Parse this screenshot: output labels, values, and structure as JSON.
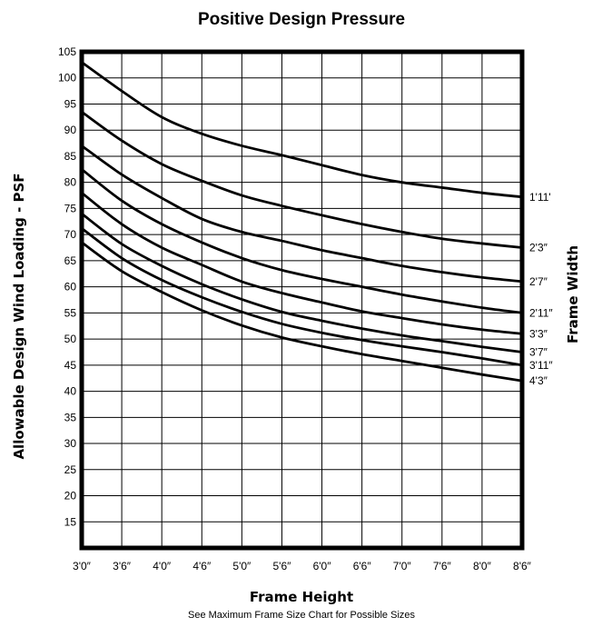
{
  "chart_data": {
    "type": "line",
    "title": "Positive Design Pressure",
    "xlabel": "Frame Height",
    "ylabel": "Allowable Design Wind Loading - PSF",
    "right_label": "Frame Width",
    "note": "See Maximum Frame Size Chart for Possible Sizes",
    "x": [
      36,
      42,
      48,
      54,
      60,
      66,
      72,
      78,
      84,
      90,
      96,
      102
    ],
    "x_tick_labels": [
      "3'0″",
      "3'6″",
      "4'0″",
      "4'6″",
      "5'0″",
      "5'6″",
      "6'0″",
      "6'6″",
      "7'0″",
      "7'6″",
      "8'0″",
      "8'6″"
    ],
    "xlim": [
      36,
      102
    ],
    "ylim": [
      10,
      105
    ],
    "y_ticks": [
      15,
      20,
      25,
      30,
      35,
      40,
      45,
      50,
      55,
      60,
      65,
      70,
      75,
      80,
      85,
      90,
      95,
      100,
      105
    ],
    "grid": true,
    "series": [
      {
        "name": "1'11'",
        "values": [
          103,
          97.5,
          92.5,
          89.3,
          87,
          85.2,
          83.3,
          81.4,
          80,
          79,
          78,
          77.2
        ]
      },
      {
        "name": "2'3″",
        "values": [
          93.5,
          88,
          83.5,
          80.3,
          77.5,
          75.5,
          73.7,
          72,
          70.5,
          69.2,
          68.3,
          67.5
        ]
      },
      {
        "name": "2'7″",
        "values": [
          87,
          81.5,
          77,
          73,
          70.5,
          68.8,
          67,
          65.5,
          64,
          62.8,
          61.8,
          61
        ]
      },
      {
        "name": "2'11″",
        "values": [
          82.5,
          76.5,
          72,
          68.5,
          65.5,
          63.2,
          61.5,
          60,
          58.5,
          57.2,
          56,
          55
        ]
      },
      {
        "name": "3'3″",
        "values": [
          78,
          72,
          67.5,
          64.2,
          61,
          58.8,
          57,
          55.3,
          54,
          52.8,
          51.8,
          51
        ]
      },
      {
        "name": "3'7″",
        "values": [
          74,
          68.2,
          64,
          60.5,
          57.6,
          55.2,
          53.5,
          52,
          50.7,
          49.6,
          48.5,
          47.5
        ]
      },
      {
        "name": "3'11″",
        "values": [
          71.2,
          65.5,
          61.3,
          58,
          55.2,
          52.9,
          51.2,
          49.8,
          48.6,
          47.5,
          46.3,
          45
        ]
      },
      {
        "name": "4'3″",
        "values": [
          68.5,
          63,
          59,
          55.5,
          52.6,
          50.3,
          48.6,
          47.1,
          45.8,
          44.5,
          43.2,
          42
        ]
      }
    ]
  }
}
